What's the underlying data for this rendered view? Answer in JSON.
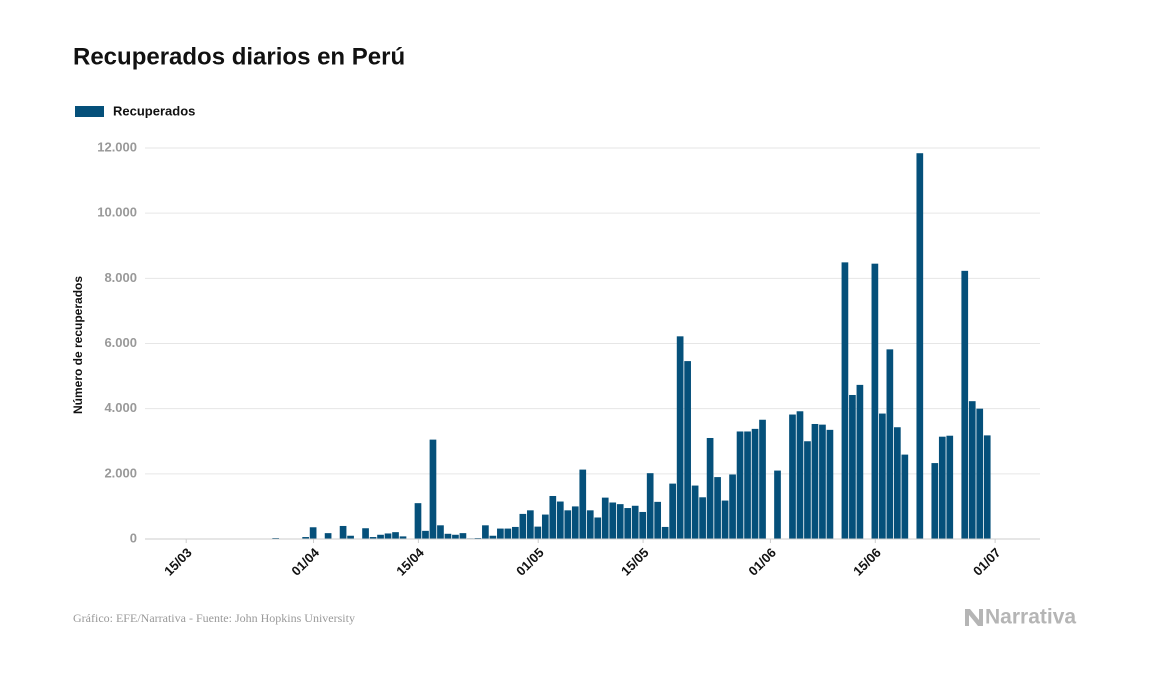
{
  "chart_data": {
    "type": "bar",
    "title": "Recuperados diarios en Perú",
    "ylabel": "Número de recuperados",
    "series": [
      {
        "name": "Recuperados",
        "color": "#05507a",
        "values": [
          0,
          0,
          0,
          0,
          0,
          2,
          3,
          5,
          5,
          5,
          5,
          5,
          5,
          5,
          5,
          5,
          5,
          30,
          10,
          5,
          10,
          60,
          360,
          0,
          180,
          0,
          400,
          100,
          0,
          330,
          60,
          130,
          170,
          210,
          80,
          0,
          1100,
          250,
          3050,
          420,
          160,
          130,
          180,
          20,
          30,
          420,
          100,
          320,
          320,
          370,
          770,
          880,
          380,
          750,
          1320,
          1150,
          880,
          1000,
          2130,
          880,
          660,
          1270,
          1120,
          1070,
          950,
          1020,
          830,
          2020,
          1140,
          370,
          1700,
          6220,
          5460,
          1640,
          1280,
          3100,
          1900,
          1180,
          1980,
          3300,
          3300,
          3380,
          3660,
          0,
          2100,
          0,
          3820,
          3920,
          3000,
          3530,
          3510,
          3350,
          0,
          8490,
          4420,
          4730,
          0,
          8450,
          3850,
          5820,
          3430,
          2590,
          0,
          11840,
          0,
          2330,
          3140,
          3170,
          0,
          8230,
          4230,
          4000,
          3180,
          null,
          null,
          null,
          null,
          null,
          null
        ]
      }
    ],
    "categories": [
      null,
      null,
      null,
      null,
      null,
      "15/03",
      null,
      null,
      null,
      null,
      null,
      null,
      null,
      null,
      null,
      null,
      null,
      null,
      null,
      null,
      null,
      null,
      "01/04",
      null,
      null,
      null,
      null,
      null,
      null,
      null,
      null,
      null,
      null,
      null,
      null,
      null,
      "15/04",
      null,
      null,
      null,
      null,
      null,
      null,
      null,
      null,
      null,
      null,
      null,
      null,
      null,
      null,
      null,
      "01/05",
      null,
      null,
      null,
      null,
      null,
      null,
      null,
      null,
      null,
      null,
      null,
      null,
      null,
      "15/05",
      null,
      null,
      null,
      null,
      null,
      null,
      null,
      null,
      null,
      null,
      null,
      null,
      null,
      null,
      null,
      null,
      "01/06",
      null,
      null,
      null,
      null,
      null,
      null,
      null,
      null,
      null,
      null,
      null,
      null,
      null,
      "15/06",
      null,
      null,
      null,
      null,
      null,
      null,
      null,
      null,
      null,
      null,
      null,
      null,
      null,
      null,
      null,
      "01/07",
      null,
      null,
      null,
      null,
      null
    ],
    "ylim": [
      0,
      12000
    ],
    "yticks": [
      0,
      {
        "value": 2000,
        "label": "2.000"
      },
      {
        "value": 4000,
        "label": "4.000"
      },
      {
        "value": 6000,
        "label": "6.000"
      },
      {
        "value": 8000,
        "label": "8.000"
      },
      {
        "value": 10000,
        "label": "10.000"
      },
      {
        "value": 12000,
        "label": "12.000"
      }
    ],
    "grid": true,
    "legend": "top-left"
  },
  "source": "Gráfico: EFE/Narrativa - Fuente: John Hopkins University",
  "logo": "Narrativa"
}
